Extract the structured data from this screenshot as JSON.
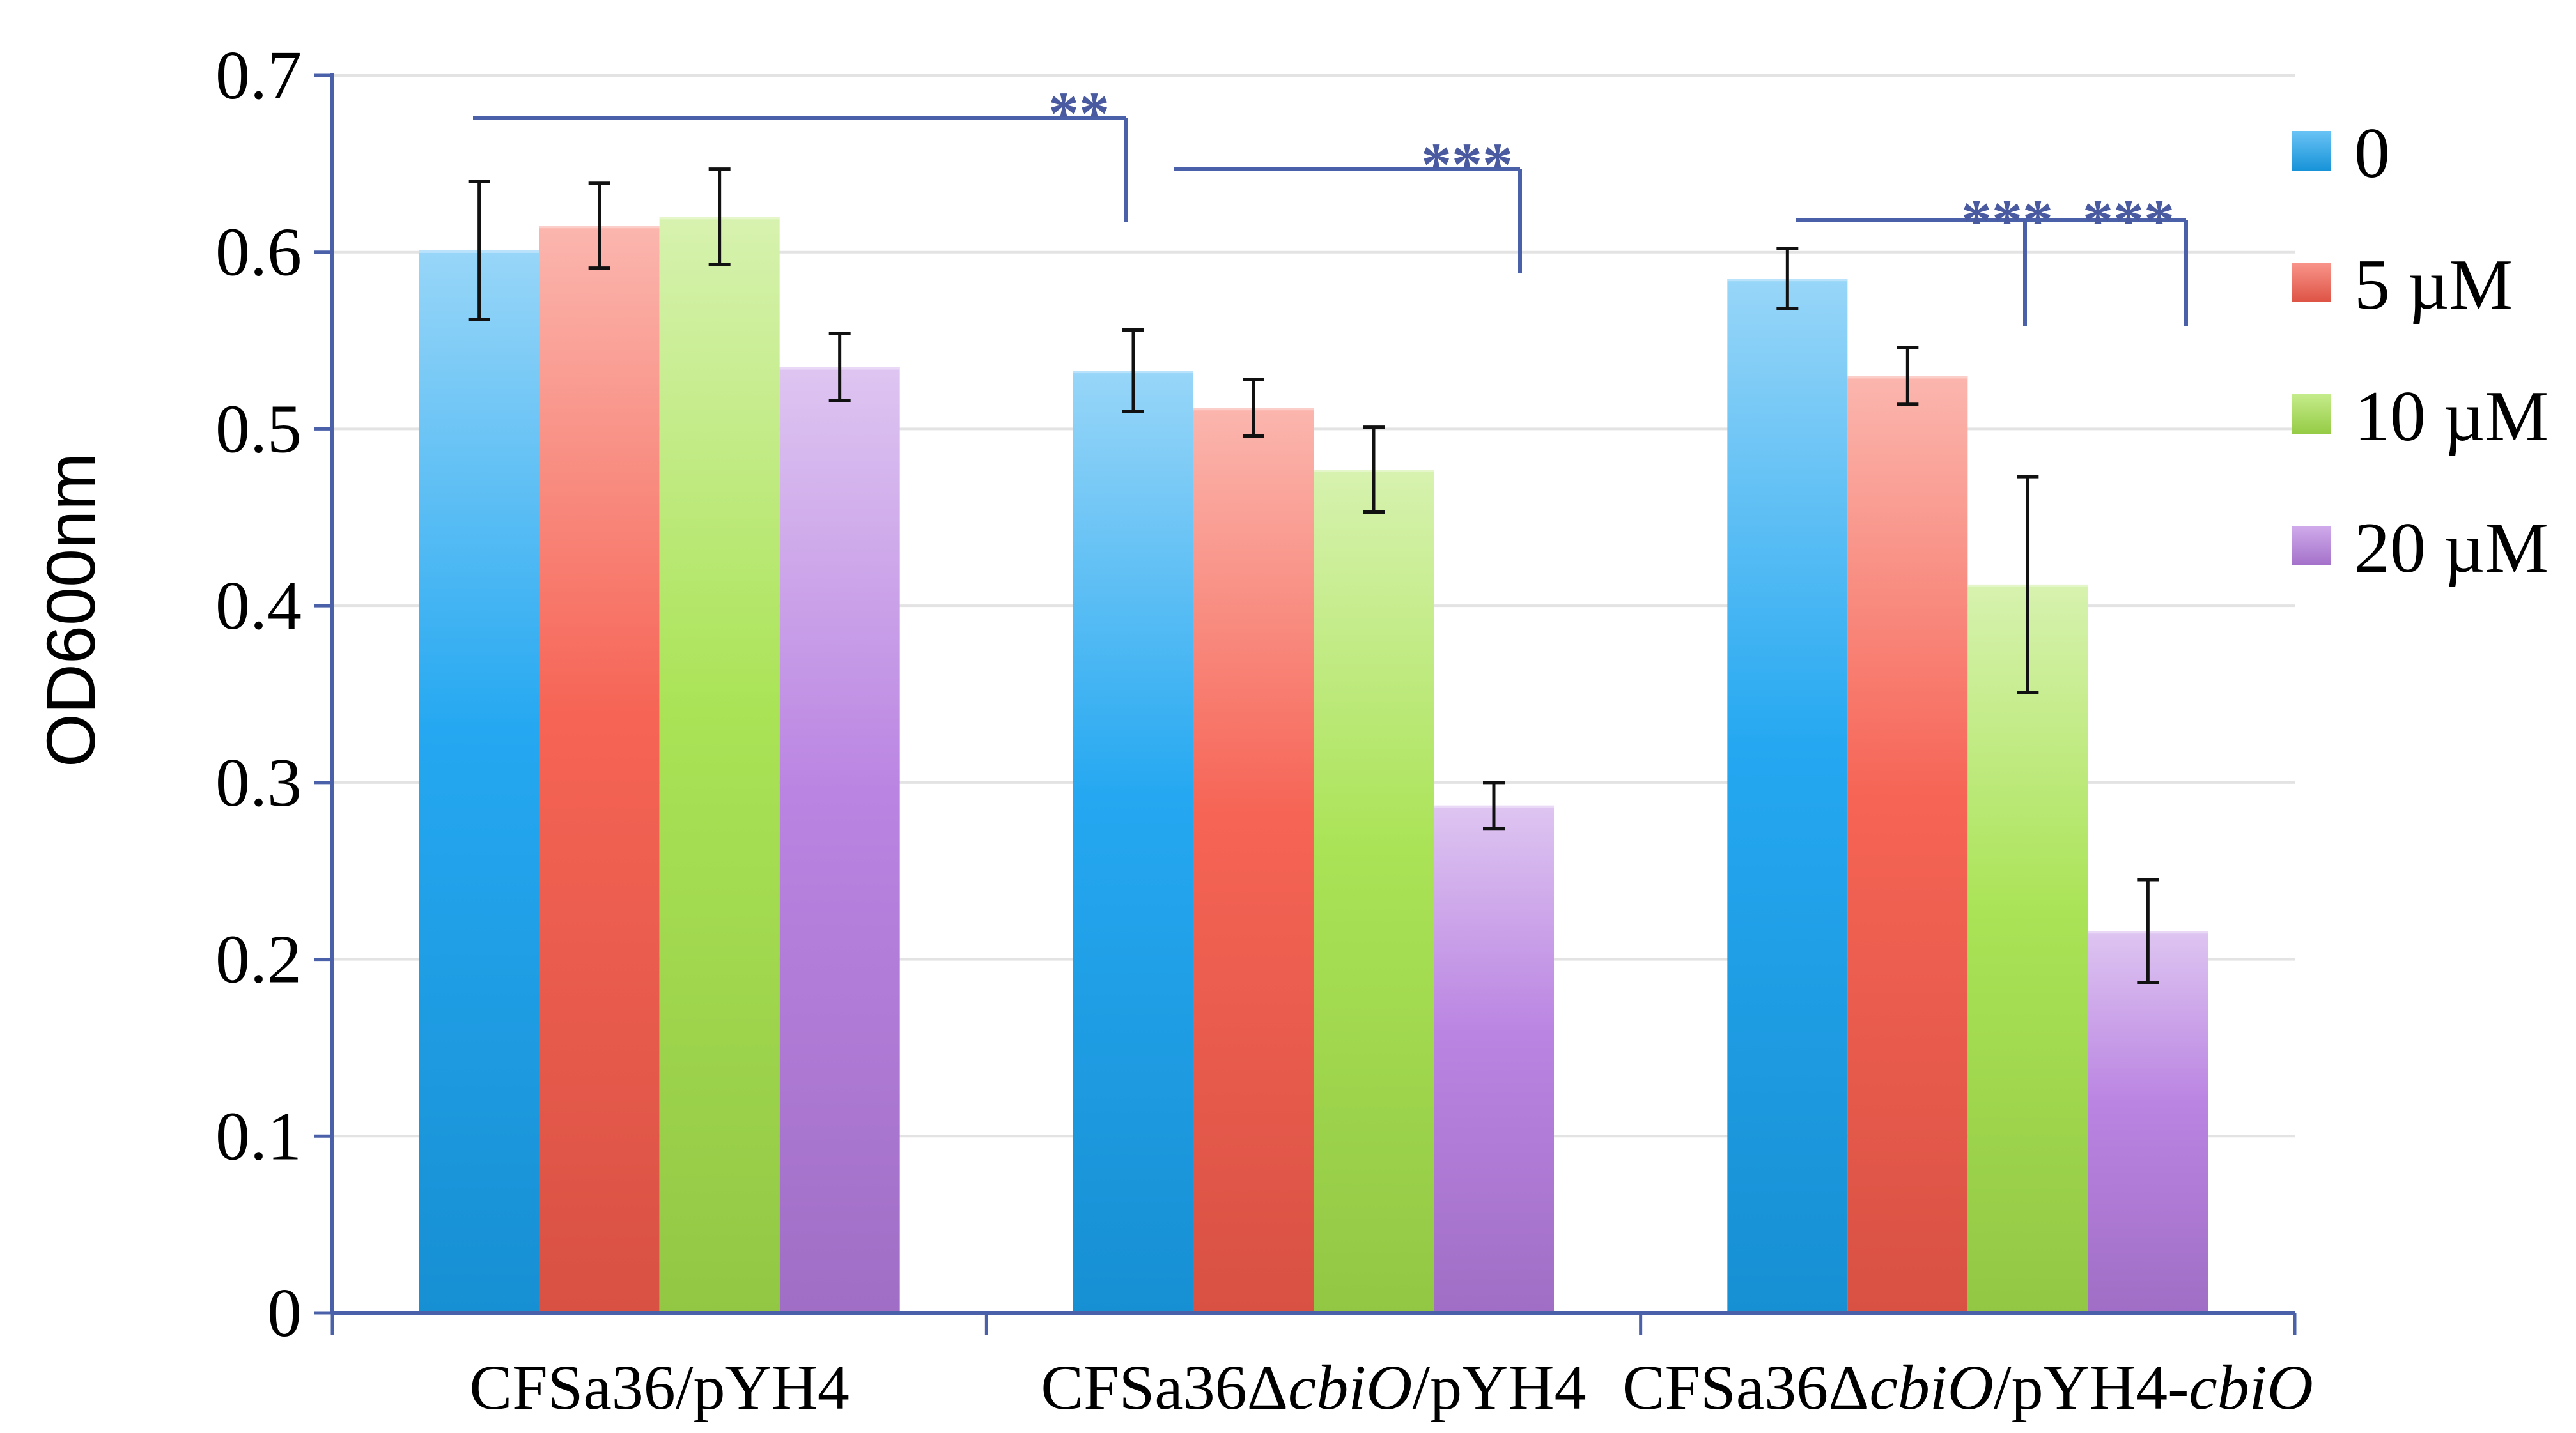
{
  "chart_data": {
    "type": "bar",
    "title": "",
    "xlabel": "",
    "ylabel": "OD600nm",
    "ylim": [
      0,
      0.7
    ],
    "yticks": [
      "0",
      "0.1",
      "0.2",
      "0.3",
      "0.4",
      "0.5",
      "0.6",
      "0.7"
    ],
    "grid": true,
    "legend_position": "right",
    "categories": [
      {
        "parts": [
          {
            "text": "CFSa36/pYH4",
            "italic": false
          }
        ]
      },
      {
        "parts": [
          {
            "text": "CFSa36Δ",
            "italic": false
          },
          {
            "text": "cbiO",
            "italic": true
          },
          {
            "text": "/pYH4",
            "italic": false
          }
        ]
      },
      {
        "parts": [
          {
            "text": "CFSa36Δ",
            "italic": false
          },
          {
            "text": "cbiO",
            "italic": true
          },
          {
            "text": "/pYH4-",
            "italic": false
          },
          {
            "text": "cbiO",
            "italic": true
          }
        ]
      }
    ],
    "series": [
      {
        "name": "0",
        "color": "#1aa3f0",
        "values": [
          0.601,
          0.533,
          0.585
        ],
        "errors": [
          0.039,
          0.023,
          0.017
        ]
      },
      {
        "name": "5 µM",
        "color": "#f65c4c",
        "values": [
          0.615,
          0.512,
          0.53
        ],
        "errors": [
          0.024,
          0.016,
          0.016
        ]
      },
      {
        "name": "10 µM",
        "color": "#a6e24d",
        "values": [
          0.62,
          0.477,
          0.412
        ],
        "errors": [
          0.027,
          0.024,
          0.061
        ]
      },
      {
        "name": "20 µM",
        "color": "#b67de0",
        "values": [
          0.535,
          0.287,
          0.216
        ],
        "errors": [
          0.019,
          0.013,
          0.029
        ]
      }
    ],
    "significance": [
      {
        "label": "**",
        "from": [
          0,
          0
        ],
        "to": [
          1,
          0
        ]
      },
      {
        "label": "***",
        "from": [
          1,
          0
        ],
        "to": [
          1,
          3
        ]
      },
      {
        "label": "***",
        "from": [
          2,
          0
        ],
        "to": [
          2,
          2
        ]
      },
      {
        "label": "***",
        "from": [
          2,
          2
        ],
        "to": [
          2,
          3
        ]
      }
    ]
  }
}
